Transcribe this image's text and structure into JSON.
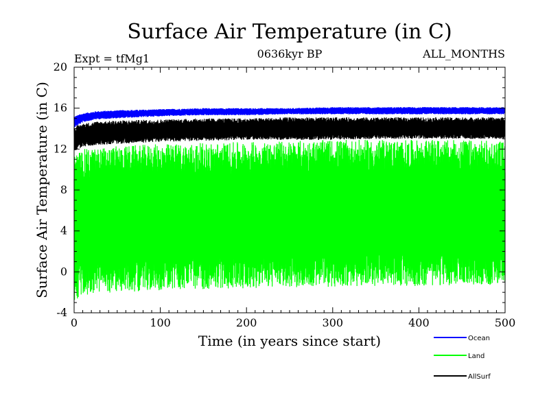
{
  "chart_data": {
    "type": "line",
    "title": "Surface Air Temperature (in C)",
    "subtitle_left": "Expt = tfMg1",
    "subtitle_center": "0636kyr BP",
    "subtitle_right": "ALL_MONTHS",
    "xlabel": "Time (in years since start)",
    "ylabel": "Surface Air Temperature (in C)",
    "xlim": [
      0,
      500
    ],
    "ylim": [
      -4,
      20
    ],
    "x_ticks": [
      0,
      100,
      200,
      300,
      400,
      500
    ],
    "y_ticks": [
      -4,
      0,
      4,
      8,
      12,
      16,
      20
    ],
    "grid": false,
    "legend_position": "bottom-right",
    "series": [
      {
        "name": "Ocean",
        "color": "#0000ff",
        "description_points_x": [
          0,
          10,
          25,
          50,
          100,
          150,
          200,
          250,
          300,
          350,
          400,
          450,
          500
        ],
        "envelope_low": [
          14.1,
          14.6,
          14.9,
          15.0,
          15.2,
          15.3,
          15.3,
          15.4,
          15.4,
          15.4,
          15.4,
          15.4,
          15.4
        ],
        "envelope_high": [
          15.2,
          15.5,
          15.7,
          15.8,
          15.9,
          16.0,
          16.0,
          16.0,
          16.1,
          16.1,
          16.1,
          16.1,
          16.1
        ]
      },
      {
        "name": "Land",
        "color": "#00ff00",
        "description_points_x": [
          0,
          10,
          25,
          50,
          100,
          150,
          200,
          250,
          300,
          350,
          400,
          450,
          500
        ],
        "envelope_low": [
          -3.0,
          -2.4,
          -2.1,
          -2.0,
          -1.8,
          -1.7,
          -1.6,
          -1.5,
          -1.5,
          -1.4,
          -1.4,
          -1.3,
          -1.3
        ],
        "envelope_high": [
          11.5,
          12.0,
          12.1,
          12.3,
          12.5,
          12.6,
          12.7,
          12.8,
          12.9,
          12.9,
          12.9,
          12.9,
          12.8
        ]
      },
      {
        "name": "AllSurf",
        "color": "#000000",
        "description_points_x": [
          0,
          10,
          25,
          50,
          100,
          150,
          200,
          250,
          300,
          350,
          400,
          450,
          500
        ],
        "envelope_low": [
          11.8,
          12.2,
          12.4,
          12.5,
          12.7,
          12.8,
          12.9,
          12.9,
          12.9,
          13.0,
          13.0,
          13.0,
          13.0
        ],
        "envelope_high": [
          14.2,
          14.5,
          14.7,
          14.8,
          14.9,
          15.0,
          15.0,
          15.1,
          15.1,
          15.1,
          15.1,
          15.1,
          15.1
        ]
      }
    ]
  }
}
